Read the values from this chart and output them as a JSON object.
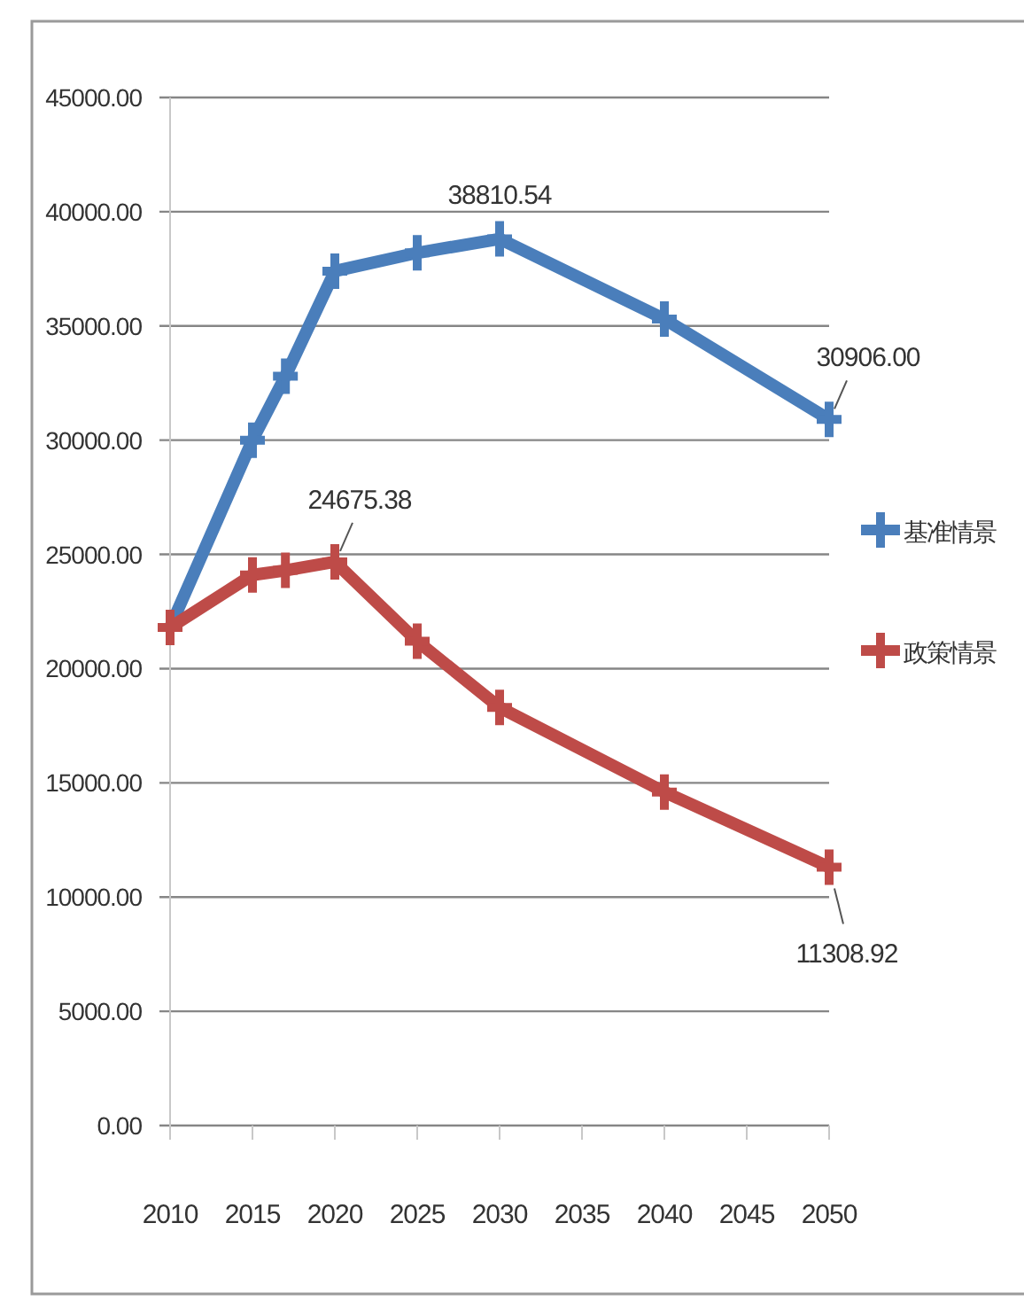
{
  "chart_data": {
    "type": "line",
    "x": [
      2010,
      2015,
      2017,
      2020,
      2025,
      2030,
      2040,
      2050
    ],
    "series": [
      {
        "name": "基准情景",
        "color": "#4a7ebb",
        "values": [
          21800,
          30000,
          32800,
          37400,
          38200,
          38810.54,
          35300,
          30906.0
        ],
        "value_labels": [
          null,
          null,
          null,
          null,
          null,
          "38810.54",
          null,
          "30906.00"
        ]
      },
      {
        "name": "政策情景",
        "color": "#be4b48",
        "values": [
          21800,
          24100,
          24300,
          24675.38,
          21200,
          18300,
          14600,
          11308.92
        ],
        "value_labels": [
          null,
          null,
          null,
          "24675.38",
          null,
          null,
          null,
          "11308.92"
        ]
      }
    ],
    "xlim": [
      2010,
      2050
    ],
    "xticks": [
      2010,
      2015,
      2020,
      2025,
      2030,
      2035,
      2040,
      2045,
      2050
    ],
    "ylim": [
      0,
      45000
    ],
    "yticks": [
      {
        "value": 0,
        "label": "0.00"
      },
      {
        "value": 5000,
        "label": "5000.00"
      },
      {
        "value": 10000,
        "label": "10000.00"
      },
      {
        "value": 15000,
        "label": "15000.00"
      },
      {
        "value": 20000,
        "label": "20000.00"
      },
      {
        "value": 25000,
        "label": "25000.00"
      },
      {
        "value": 30000,
        "label": "30000.00"
      },
      {
        "value": 35000,
        "label": "35000.00"
      },
      {
        "value": 40000,
        "label": "40000.00"
      },
      {
        "value": 45000,
        "label": "45000.00"
      }
    ],
    "grid": "y",
    "legend": "right",
    "marker": "cross",
    "line_style": "solid"
  }
}
